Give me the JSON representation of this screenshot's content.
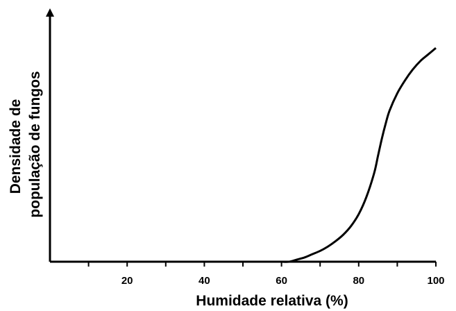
{
  "chart_data": {
    "type": "line",
    "xlabel": "Humidade relativa  (%)",
    "ylabel_lines": [
      "Densidade de",
      "população de fungos"
    ],
    "xlim": [
      0,
      100
    ],
    "ylim": [
      0,
      1
    ],
    "x_ticks_labeled": [
      "20",
      "40",
      "60",
      "80",
      "100"
    ],
    "x_tick_values_labeled": [
      20,
      40,
      60,
      80,
      100
    ],
    "x_tick_values_minor": [
      10,
      30,
      50,
      70,
      90
    ],
    "y_ticks_labeled": [],
    "grid": false,
    "legend": "none",
    "colors": {
      "axis": "#000000",
      "line": "#000000",
      "background": "#ffffff"
    },
    "series": [
      {
        "x": [
          60,
          62,
          64,
          66,
          68,
          70,
          72,
          74,
          76,
          78,
          80,
          82,
          84,
          85,
          86,
          87,
          88,
          90,
          92,
          94,
          96,
          98,
          100
        ],
        "y": [
          0,
          0,
          0.01,
          0.02,
          0.035,
          0.05,
          0.07,
          0.095,
          0.125,
          0.165,
          0.22,
          0.3,
          0.41,
          0.49,
          0.57,
          0.64,
          0.7,
          0.78,
          0.84,
          0.89,
          0.93,
          0.96,
          0.99
        ]
      }
    ]
  }
}
